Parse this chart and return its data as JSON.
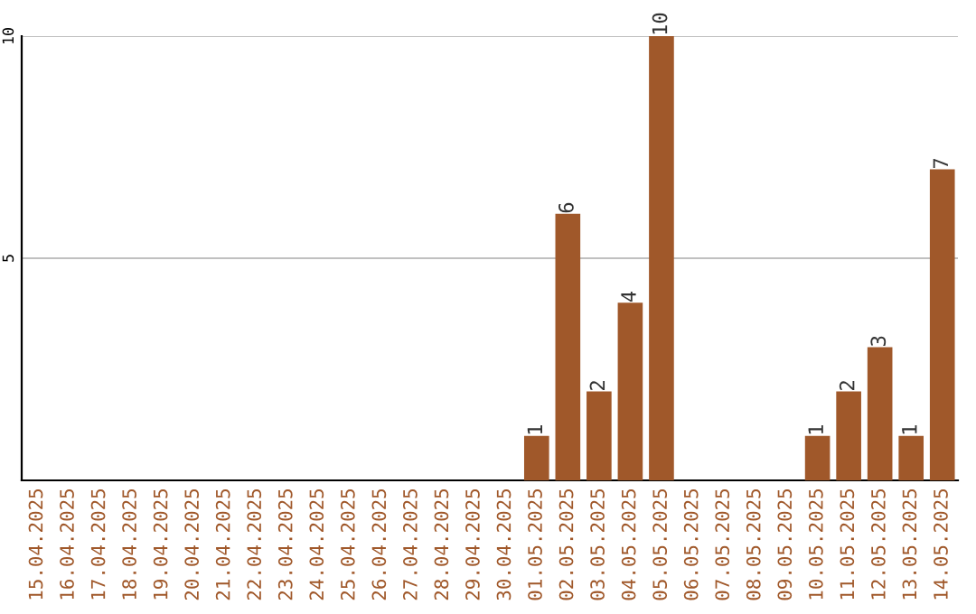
{
  "chart_data": {
    "type": "bar",
    "categories": [
      "15.04.2025",
      "16.04.2025",
      "17.04.2025",
      "18.04.2025",
      "19.04.2025",
      "20.04.2025",
      "21.04.2025",
      "22.04.2025",
      "23.04.2025",
      "24.04.2025",
      "25.04.2025",
      "26.04.2025",
      "27.04.2025",
      "28.04.2025",
      "29.04.2025",
      "30.04.2025",
      "01.05.2025",
      "02.05.2025",
      "03.05.2025",
      "04.05.2025",
      "05.05.2025",
      "06.05.2025",
      "07.05.2025",
      "08.05.2025",
      "09.05.2025",
      "10.05.2025",
      "11.05.2025",
      "12.05.2025",
      "13.05.2025",
      "14.05.2025"
    ],
    "values": [
      0,
      0,
      0,
      0,
      0,
      0,
      0,
      0,
      0,
      0,
      0,
      0,
      0,
      0,
      0,
      0,
      1,
      6,
      2,
      4,
      10,
      0,
      0,
      0,
      0,
      1,
      2,
      3,
      1,
      7
    ],
    "value_labels": [
      null,
      null,
      null,
      null,
      null,
      null,
      null,
      null,
      null,
      null,
      null,
      null,
      null,
      null,
      null,
      null,
      "1",
      "6",
      "2",
      "4",
      "10",
      null,
      null,
      null,
      null,
      "1",
      "2",
      "3",
      "1",
      "7"
    ],
    "color": "#a0582a",
    "ylim": [
      0,
      10
    ],
    "yticks": [
      5,
      10
    ],
    "grid": "y"
  }
}
